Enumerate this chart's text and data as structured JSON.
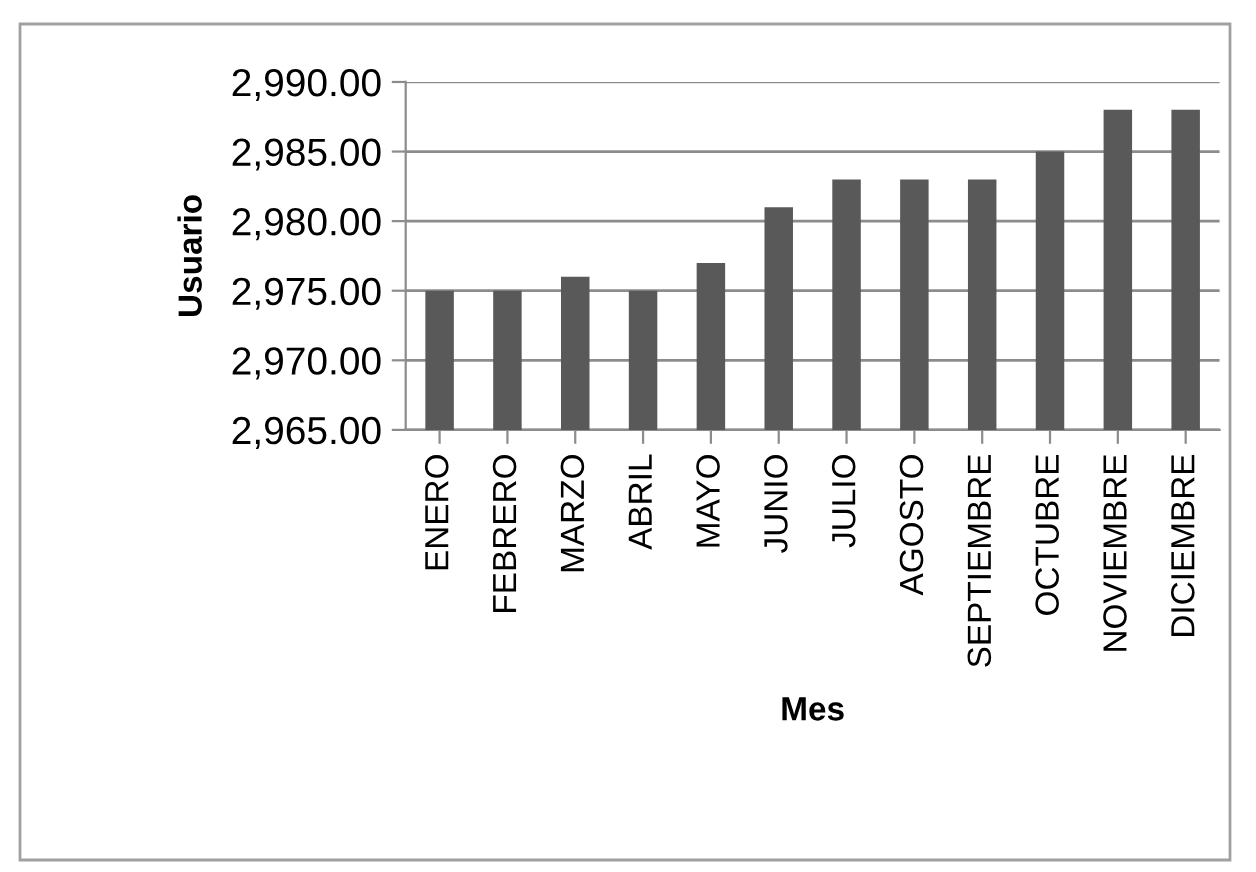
{
  "chart_data": {
    "type": "bar",
    "xlabel": "Mes",
    "ylabel": "Usuario",
    "categories": [
      "ENERO",
      "FEBRERO",
      "MARZO",
      "ABRIL",
      "MAYO",
      "JUNIO",
      "JULIO",
      "AGOSTO",
      "SEPTIEMBRE",
      "OCTUBRE",
      "NOVIEMBRE",
      "DICIEMBRE"
    ],
    "values": [
      2975,
      2975,
      2976,
      2975,
      2977,
      2981,
      2983,
      2983,
      2983,
      2985,
      2988,
      2988
    ],
    "color": "#595959",
    "ylim": [
      2965,
      2990
    ],
    "yticks": [
      {
        "value": 2965,
        "label": "2,965.00"
      },
      {
        "value": 2970,
        "label": "2,970.00"
      },
      {
        "value": 2975,
        "label": "2,975.00"
      },
      {
        "value": 2980,
        "label": "2,980.00"
      },
      {
        "value": 2985,
        "label": "2,985.00"
      },
      {
        "value": 2990,
        "label": "2,990.00"
      }
    ],
    "grid": "y",
    "legend": false
  }
}
